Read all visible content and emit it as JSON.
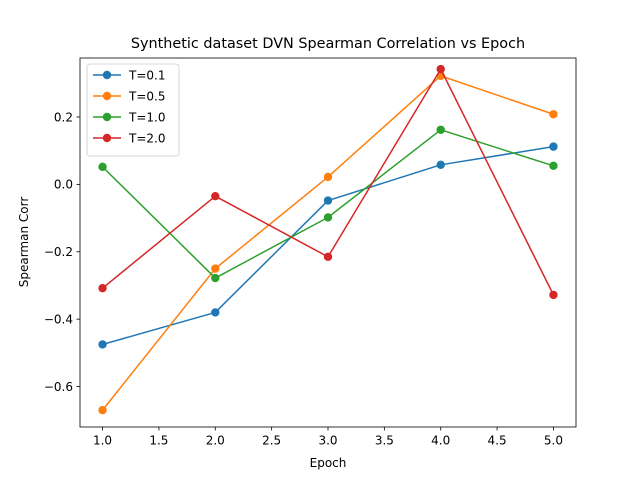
{
  "chart_data": {
    "type": "line",
    "title": "Synthetic dataset DVN Spearman Correlation vs Epoch",
    "xlabel": "Epoch",
    "ylabel": "Spearman Corr",
    "x": [
      1.0,
      2.0,
      3.0,
      4.0,
      5.0
    ],
    "xlim": [
      0.8,
      5.2
    ],
    "ylim": [
      -0.72,
      0.375
    ],
    "xticks": [
      1.0,
      1.5,
      2.0,
      2.5,
      3.0,
      3.5,
      4.0,
      4.5,
      5.0
    ],
    "xtick_labels": [
      "1.0",
      "1.5",
      "2.0",
      "2.5",
      "3.0",
      "3.5",
      "4.0",
      "4.5",
      "5.0"
    ],
    "yticks": [
      -0.6,
      -0.4,
      -0.2,
      0.0,
      0.2
    ],
    "ytick_labels": [
      "−0.6",
      "−0.4",
      "−0.2",
      "0.0",
      "0.2"
    ],
    "grid": false,
    "legend_position": "top-left",
    "series": [
      {
        "name": "T=0.1",
        "color": "#1f77b4",
        "values": [
          -0.475,
          -0.38,
          -0.048,
          0.058,
          0.112
        ]
      },
      {
        "name": "T=0.5",
        "color": "#ff7f0e",
        "values": [
          -0.67,
          -0.25,
          0.022,
          0.322,
          0.208
        ]
      },
      {
        "name": "T=1.0",
        "color": "#2ca02c",
        "values": [
          0.052,
          -0.278,
          -0.098,
          0.162,
          0.055
        ]
      },
      {
        "name": "T=2.0",
        "color": "#d62728",
        "values": [
          -0.308,
          -0.035,
          -0.215,
          0.342,
          -0.328
        ]
      }
    ]
  }
}
